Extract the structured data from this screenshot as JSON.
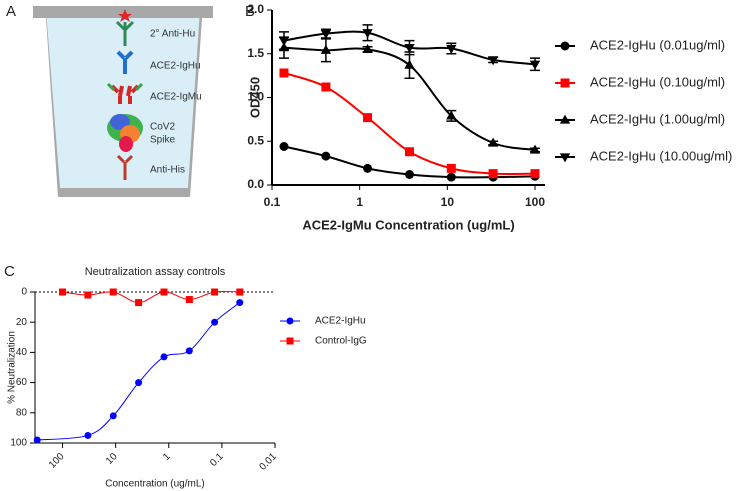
{
  "panel_labels": [
    "A",
    "B",
    "C"
  ],
  "diagram": {
    "labels": [
      "2° Anti-Hu",
      "ACE2-IgHu",
      "ACE2-IgMu",
      "CoV2",
      "Spike",
      "Anti-His"
    ]
  },
  "chart_data": [
    {
      "type": "line",
      "x_label": "ACE2-IgMu Concentration (ug/mL)",
      "y_label": "OD450",
      "x": [
        0.137,
        0.412,
        1.23,
        3.7,
        11.1,
        33.3,
        100
      ],
      "xscale": "log",
      "xlim": [
        0.1,
        130
      ],
      "xticks": [
        0.1,
        1,
        10,
        100
      ],
      "ylim": [
        0,
        2
      ],
      "yticks": [
        {
          "value": 0,
          "label": "0.0"
        },
        0.5,
        {
          "value": 1,
          "label": "1.0"
        },
        1.5,
        {
          "value": 2,
          "label": "2.0"
        }
      ],
      "legend": "right",
      "series": [
        {
          "name": "ACE2-IgHu (0.01ug/ml)",
          "color": "#000000",
          "marker": "circle",
          "values": [
            0.44,
            0.33,
            0.19,
            0.12,
            0.09,
            0.09,
            0.1
          ]
        },
        {
          "name": "ACE2-IgHu (0.10ug/ml)",
          "color": "#ff0000",
          "marker": "square",
          "values": [
            1.28,
            1.12,
            0.77,
            0.38,
            0.19,
            0.13,
            0.13
          ]
        },
        {
          "name": "ACE2-IgHu (1.00ug/ml)",
          "color": "#000000",
          "marker": "triangle-up",
          "values": [
            1.57,
            1.54,
            1.55,
            1.37,
            0.79,
            0.48,
            0.4
          ],
          "errors": [
            0.12,
            0.13,
            0.03,
            0.15,
            0.06,
            0.02,
            0.02
          ]
        },
        {
          "name": "ACE2-IgHu (10.00ug/ml)",
          "color": "#000000",
          "marker": "triangle-down",
          "values": [
            1.65,
            1.73,
            1.74,
            1.57,
            1.56,
            1.43,
            1.38
          ],
          "errors": [
            0.1,
            0.05,
            0.09,
            0.08,
            0.06,
            0.03,
            0.07
          ]
        }
      ]
    },
    {
      "type": "line",
      "title": "Neutralization assay controls",
      "x_label": "Concentration (ug/mL)",
      "y_label": "% Neutralization",
      "xscale": "log",
      "xlim": [
        330,
        0.01
      ],
      "xticks": [
        100,
        10,
        1,
        0.1,
        0.01
      ],
      "ylim": [
        100,
        0
      ],
      "yticks": [
        0,
        20,
        40,
        60,
        80,
        100
      ],
      "reference_line": 0,
      "legend": "right",
      "series": [
        {
          "name": "ACE2-IgHu",
          "color": "#0000ff",
          "marker": "circle",
          "x": [
            300,
            33.3,
            11.1,
            3.7,
            1.23,
            0.41,
            0.137,
            0.046
          ],
          "values": [
            98,
            95,
            82,
            60,
            43,
            39,
            20,
            7
          ]
        },
        {
          "name": "Control-IgG",
          "color": "#ff0000",
          "marker": "square",
          "x": [
            100,
            33.3,
            11.1,
            3.7,
            1.23,
            0.41,
            0.137,
            0.046
          ],
          "values": [
            0,
            2,
            0,
            7,
            0,
            5,
            0,
            0
          ]
        }
      ]
    }
  ]
}
